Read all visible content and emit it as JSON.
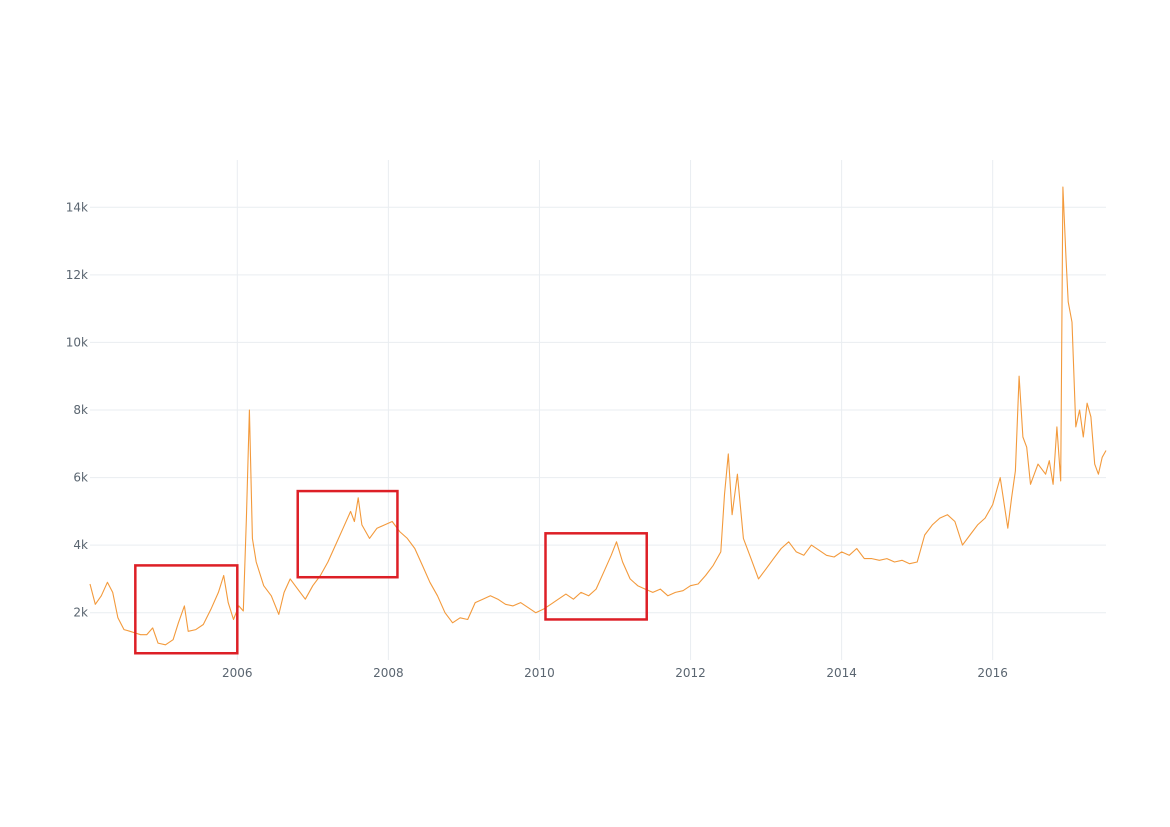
{
  "colors": {
    "line": "#f39a3c",
    "highlight": "#dd1f26",
    "grid": "#e9edf1",
    "tick_text": "#5a6570"
  },
  "chart_data": {
    "type": "line",
    "title": "",
    "xlabel": "",
    "ylabel": "",
    "xlim": [
      2004.05,
      2017.5
    ],
    "ylim": [
      600,
      15400
    ],
    "grid": true,
    "x_ticks": [
      {
        "value": 2006,
        "label": "2006"
      },
      {
        "value": 2008,
        "label": "2008"
      },
      {
        "value": 2010,
        "label": "2010"
      },
      {
        "value": 2012,
        "label": "2012"
      },
      {
        "value": 2014,
        "label": "2014"
      },
      {
        "value": 2016,
        "label": "2016"
      }
    ],
    "y_ticks": [
      {
        "value": 2000,
        "label": "2k"
      },
      {
        "value": 4000,
        "label": "4k"
      },
      {
        "value": 6000,
        "label": "6k"
      },
      {
        "value": 8000,
        "label": "8k"
      },
      {
        "value": 10000,
        "label": "10k"
      },
      {
        "value": 12000,
        "label": "12k"
      },
      {
        "value": 14000,
        "label": "14k"
      }
    ],
    "series": [
      {
        "x": [
          2004.05,
          2004.12,
          2004.2,
          2004.28,
          2004.35,
          2004.42,
          2004.5,
          2004.58,
          2004.65,
          2004.72,
          2004.8,
          2004.88,
          2004.95,
          2005.05,
          2005.15,
          2005.22,
          2005.3,
          2005.35,
          2005.45,
          2005.55,
          2005.65,
          2005.75,
          2005.82,
          2005.88,
          2005.95,
          2006.02,
          2006.08,
          2006.12,
          2006.16,
          2006.2,
          2006.25,
          2006.35,
          2006.45,
          2006.55,
          2006.62,
          2006.7,
          2006.8,
          2006.9,
          2007.0,
          2007.1,
          2007.2,
          2007.3,
          2007.4,
          2007.5,
          2007.55,
          2007.6,
          2007.65,
          2007.75,
          2007.85,
          2007.95,
          2008.05,
          2008.15,
          2008.25,
          2008.35,
          2008.45,
          2008.55,
          2008.65,
          2008.75,
          2008.85,
          2008.95,
          2009.05,
          2009.15,
          2009.25,
          2009.35,
          2009.45,
          2009.55,
          2009.65,
          2009.75,
          2009.85,
          2009.95,
          2010.05,
          2010.15,
          2010.25,
          2010.35,
          2010.45,
          2010.55,
          2010.65,
          2010.75,
          2010.85,
          2010.95,
          2011.02,
          2011.1,
          2011.2,
          2011.3,
          2011.4,
          2011.5,
          2011.6,
          2011.7,
          2011.8,
          2011.9,
          2012.0,
          2012.1,
          2012.2,
          2012.3,
          2012.4,
          2012.45,
          2012.5,
          2012.55,
          2012.62,
          2012.7,
          2012.8,
          2012.9,
          2013.0,
          2013.1,
          2013.2,
          2013.3,
          2013.4,
          2013.5,
          2013.6,
          2013.7,
          2013.8,
          2013.9,
          2014.0,
          2014.1,
          2014.2,
          2014.3,
          2014.4,
          2014.5,
          2014.6,
          2014.7,
          2014.8,
          2014.9,
          2015.0,
          2015.1,
          2015.2,
          2015.3,
          2015.4,
          2015.5,
          2015.6,
          2015.7,
          2015.8,
          2015.9,
          2016.0,
          2016.1,
          2016.2,
          2016.25,
          2016.3,
          2016.35,
          2016.4,
          2016.45,
          2016.5,
          2016.6,
          2016.7,
          2016.75,
          2016.8,
          2016.85,
          2016.9,
          2016.93,
          2016.97,
          2017.0,
          2017.05,
          2017.1,
          2017.15,
          2017.2,
          2017.25,
          2017.3,
          2017.35,
          2017.4,
          2017.45,
          2017.5
        ],
        "values": [
          2850,
          2250,
          2500,
          2900,
          2600,
          1850,
          1500,
          1450,
          1400,
          1350,
          1350,
          1550,
          1100,
          1050,
          1200,
          1700,
          2200,
          1450,
          1500,
          1650,
          2100,
          2600,
          3100,
          2300,
          1800,
          2200,
          2050,
          4800,
          8000,
          4200,
          3500,
          2800,
          2500,
          1950,
          2600,
          3000,
          2700,
          2400,
          2800,
          3100,
          3500,
          4000,
          4500,
          5000,
          4700,
          5400,
          4600,
          4200,
          4500,
          4600,
          4700,
          4400,
          4200,
          3900,
          3400,
          2900,
          2500,
          2000,
          1700,
          1850,
          1800,
          2300,
          2400,
          2500,
          2400,
          2250,
          2200,
          2300,
          2150,
          2000,
          2100,
          2250,
          2400,
          2550,
          2400,
          2600,
          2500,
          2700,
          3200,
          3700,
          4100,
          3500,
          3000,
          2800,
          2700,
          2600,
          2700,
          2500,
          2600,
          2650,
          2800,
          2850,
          3100,
          3400,
          3800,
          5500,
          6700,
          4900,
          6100,
          4200,
          3600,
          3000,
          3300,
          3600,
          3900,
          4100,
          3800,
          3700,
          4000,
          3850,
          3700,
          3650,
          3800,
          3700,
          3900,
          3600,
          3600,
          3550,
          3600,
          3500,
          3550,
          3450,
          3500,
          4300,
          4600,
          4800,
          4900,
          4700,
          4000,
          4300,
          4600,
          4800,
          5200,
          6000,
          4500,
          5400,
          6200,
          9000,
          7200,
          6900,
          5800,
          6400,
          6100,
          6500,
          5800,
          7500,
          5900,
          14600,
          12500,
          11200,
          10600,
          7500,
          8000,
          7200,
          8200,
          7800,
          6400,
          6100,
          6600,
          6800
        ]
      }
    ],
    "highlight_boxes": [
      {
        "x0": 2004.65,
        "x1": 2006.0,
        "y0": 800,
        "y1": 3400
      },
      {
        "x0": 2006.8,
        "x1": 2008.12,
        "y0": 3050,
        "y1": 5600
      },
      {
        "x0": 2010.08,
        "x1": 2011.42,
        "y0": 1800,
        "y1": 4350
      }
    ]
  }
}
